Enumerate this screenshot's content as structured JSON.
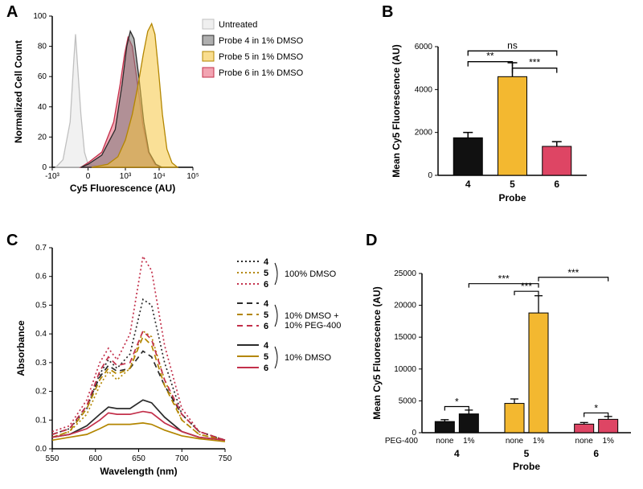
{
  "colors": {
    "untreated": {
      "fill": "#e5e5e5",
      "stroke": "#c0c0c0"
    },
    "probe4": {
      "fill": "#7a7a7a",
      "stroke": "#2b2b2b",
      "bar": "#111111"
    },
    "probe5": {
      "fill": "#f5c642",
      "stroke": "#b38600",
      "bar": "#f3b830"
    },
    "probe6": {
      "fill": "#e9677e",
      "stroke": "#c3304b",
      "bar": "#de4564"
    },
    "axis": "#000000",
    "bg": "#ffffff"
  },
  "panelA": {
    "label": "A",
    "type": "histogram",
    "xlabel": "Cy5 Fluorescence  (AU)",
    "ylabel": "Normalized Cell Count",
    "xticks": [
      "-10³",
      "0",
      "10³",
      "10⁴",
      "10⁵"
    ],
    "xlim": [
      -1000,
      100000
    ],
    "yticks": [
      0,
      20,
      40,
      60,
      80,
      100
    ],
    "ylim": [
      0,
      100
    ],
    "legend": [
      {
        "key": "untreated",
        "text": "Untreated"
      },
      {
        "key": "probe4",
        "text": "Probe 4 in 1% DMSO"
      },
      {
        "key": "probe5",
        "text": "Probe 5 in 1% DMSO"
      },
      {
        "key": "probe6",
        "text": "Probe 6 in 1% DMSO"
      }
    ],
    "curves": {
      "untreated": [
        [
          -900,
          0
        ],
        [
          -700,
          5
        ],
        [
          -500,
          30
        ],
        [
          -400,
          70
        ],
        [
          -350,
          88
        ],
        [
          -300,
          70
        ],
        [
          -200,
          35
        ],
        [
          -100,
          10
        ],
        [
          0,
          2
        ],
        [
          200,
          0
        ]
      ],
      "probe4": [
        [
          -200,
          0
        ],
        [
          0,
          2
        ],
        [
          200,
          8
        ],
        [
          500,
          25
        ],
        [
          800,
          55
        ],
        [
          1100,
          80
        ],
        [
          1400,
          90
        ],
        [
          1800,
          85
        ],
        [
          2500,
          60
        ],
        [
          3500,
          30
        ],
        [
          5000,
          10
        ],
        [
          8000,
          2
        ],
        [
          12000,
          0
        ]
      ],
      "probe6": [
        [
          -200,
          0
        ],
        [
          0,
          3
        ],
        [
          200,
          10
        ],
        [
          450,
          30
        ],
        [
          700,
          55
        ],
        [
          950,
          75
        ],
        [
          1200,
          86
        ],
        [
          1600,
          80
        ],
        [
          2300,
          55
        ],
        [
          3300,
          28
        ],
        [
          4800,
          10
        ],
        [
          7500,
          2
        ],
        [
          11000,
          0
        ]
      ],
      "probe5": [
        [
          100,
          0
        ],
        [
          300,
          2
        ],
        [
          600,
          7
        ],
        [
          1000,
          18
        ],
        [
          1600,
          35
        ],
        [
          2400,
          55
        ],
        [
          3400,
          75
        ],
        [
          4600,
          90
        ],
        [
          6000,
          95
        ],
        [
          7500,
          88
        ],
        [
          9500,
          65
        ],
        [
          12500,
          35
        ],
        [
          17000,
          12
        ],
        [
          24000,
          3
        ],
        [
          35000,
          0
        ]
      ]
    }
  },
  "panelB": {
    "label": "B",
    "type": "bar",
    "ylabel": "Mean Cy5 Fluorescence (AU)",
    "xlabel": "Probe",
    "ylim": [
      0,
      6000
    ],
    "yticks": [
      0,
      2000,
      4000,
      6000
    ],
    "categories": [
      "4",
      "5",
      "6"
    ],
    "values": [
      1750,
      4600,
      1350
    ],
    "errors": [
      250,
      650,
      220
    ],
    "colors": [
      "probe4",
      "probe5",
      "probe6"
    ],
    "sig": [
      {
        "from": 0,
        "to": 1,
        "y": 5300,
        "label": "**"
      },
      {
        "from": 1,
        "to": 2,
        "y": 5000,
        "label": "***"
      },
      {
        "from": 0,
        "to": 2,
        "y": 5800,
        "label": "ns"
      }
    ]
  },
  "panelC": {
    "label": "C",
    "type": "line",
    "xlabel": "Wavelength (nm)",
    "ylabel": "Absorbance",
    "xlim": [
      550,
      750
    ],
    "xticks": [
      550,
      600,
      650,
      700,
      750
    ],
    "ylim": [
      0,
      0.7
    ],
    "yticks": [
      0.0,
      0.1,
      0.2,
      0.3,
      0.4,
      0.5,
      0.6,
      0.7
    ],
    "legend_groups": [
      {
        "dash": "dot",
        "cond": "100% DMSO",
        "items": [
          "4",
          "5",
          "6"
        ]
      },
      {
        "dash": "dash",
        "cond": "10% DMSO +\n10% PEG-400",
        "items": [
          "4",
          "5",
          "6"
        ]
      },
      {
        "dash": "solid",
        "cond": "10% DMSO",
        "items": [
          "4",
          "5",
          "6"
        ]
      }
    ],
    "series": [
      {
        "probe": "4",
        "dash": "dot",
        "pts": [
          [
            550,
            0.05
          ],
          [
            570,
            0.07
          ],
          [
            590,
            0.14
          ],
          [
            605,
            0.26
          ],
          [
            615,
            0.31
          ],
          [
            625,
            0.28
          ],
          [
            640,
            0.33
          ],
          [
            655,
            0.52
          ],
          [
            665,
            0.5
          ],
          [
            680,
            0.3
          ],
          [
            700,
            0.12
          ],
          [
            720,
            0.06
          ],
          [
            750,
            0.03
          ]
        ]
      },
      {
        "probe": "5",
        "dash": "dot",
        "pts": [
          [
            550,
            0.04
          ],
          [
            570,
            0.06
          ],
          [
            590,
            0.12
          ],
          [
            605,
            0.22
          ],
          [
            615,
            0.27
          ],
          [
            625,
            0.24
          ],
          [
            640,
            0.28
          ],
          [
            655,
            0.41
          ],
          [
            665,
            0.39
          ],
          [
            680,
            0.24
          ],
          [
            700,
            0.1
          ],
          [
            720,
            0.05
          ],
          [
            750,
            0.03
          ]
        ]
      },
      {
        "probe": "6",
        "dash": "dot",
        "pts": [
          [
            550,
            0.06
          ],
          [
            570,
            0.08
          ],
          [
            590,
            0.17
          ],
          [
            605,
            0.3
          ],
          [
            615,
            0.35
          ],
          [
            625,
            0.31
          ],
          [
            640,
            0.4
          ],
          [
            655,
            0.67
          ],
          [
            665,
            0.62
          ],
          [
            680,
            0.36
          ],
          [
            700,
            0.14
          ],
          [
            720,
            0.06
          ],
          [
            750,
            0.03
          ]
        ]
      },
      {
        "probe": "4",
        "dash": "dash",
        "pts": [
          [
            550,
            0.05
          ],
          [
            570,
            0.07
          ],
          [
            590,
            0.15
          ],
          [
            605,
            0.25
          ],
          [
            615,
            0.29
          ],
          [
            625,
            0.27
          ],
          [
            640,
            0.28
          ],
          [
            655,
            0.34
          ],
          [
            665,
            0.32
          ],
          [
            680,
            0.22
          ],
          [
            700,
            0.12
          ],
          [
            720,
            0.06
          ],
          [
            750,
            0.03
          ]
        ]
      },
      {
        "probe": "5",
        "dash": "dash",
        "pts": [
          [
            550,
            0.04
          ],
          [
            570,
            0.06
          ],
          [
            590,
            0.14
          ],
          [
            605,
            0.24
          ],
          [
            615,
            0.28
          ],
          [
            625,
            0.26
          ],
          [
            640,
            0.28
          ],
          [
            655,
            0.39
          ],
          [
            665,
            0.36
          ],
          [
            680,
            0.22
          ],
          [
            700,
            0.1
          ],
          [
            720,
            0.05
          ],
          [
            750,
            0.03
          ]
        ]
      },
      {
        "probe": "6",
        "dash": "dash",
        "pts": [
          [
            550,
            0.05
          ],
          [
            570,
            0.07
          ],
          [
            590,
            0.15
          ],
          [
            605,
            0.27
          ],
          [
            615,
            0.32
          ],
          [
            625,
            0.29
          ],
          [
            640,
            0.3
          ],
          [
            655,
            0.41
          ],
          [
            665,
            0.38
          ],
          [
            680,
            0.24
          ],
          [
            700,
            0.12
          ],
          [
            720,
            0.06
          ],
          [
            750,
            0.03
          ]
        ]
      },
      {
        "probe": "4",
        "dash": "solid",
        "pts": [
          [
            550,
            0.04
          ],
          [
            570,
            0.05
          ],
          [
            590,
            0.08
          ],
          [
            605,
            0.12
          ],
          [
            615,
            0.145
          ],
          [
            625,
            0.14
          ],
          [
            640,
            0.14
          ],
          [
            655,
            0.17
          ],
          [
            665,
            0.16
          ],
          [
            680,
            0.11
          ],
          [
            700,
            0.06
          ],
          [
            720,
            0.04
          ],
          [
            750,
            0.03
          ]
        ]
      },
      {
        "probe": "5",
        "dash": "solid",
        "pts": [
          [
            550,
            0.03
          ],
          [
            570,
            0.04
          ],
          [
            590,
            0.05
          ],
          [
            605,
            0.07
          ],
          [
            615,
            0.085
          ],
          [
            625,
            0.085
          ],
          [
            640,
            0.085
          ],
          [
            655,
            0.09
          ],
          [
            665,
            0.085
          ],
          [
            680,
            0.065
          ],
          [
            700,
            0.045
          ],
          [
            720,
            0.035
          ],
          [
            750,
            0.025
          ]
        ]
      },
      {
        "probe": "6",
        "dash": "solid",
        "pts": [
          [
            550,
            0.04
          ],
          [
            570,
            0.05
          ],
          [
            590,
            0.07
          ],
          [
            605,
            0.1
          ],
          [
            615,
            0.125
          ],
          [
            625,
            0.12
          ],
          [
            640,
            0.12
          ],
          [
            655,
            0.13
          ],
          [
            665,
            0.125
          ],
          [
            680,
            0.09
          ],
          [
            700,
            0.06
          ],
          [
            720,
            0.04
          ],
          [
            750,
            0.03
          ]
        ]
      }
    ],
    "probe_color": {
      "4": "probe4",
      "5": "probe5",
      "6": "probe6"
    },
    "dash_map": {
      "dot": "2 3",
      "dash": "7 5",
      "solid": ""
    }
  },
  "panelD": {
    "label": "D",
    "type": "bar",
    "ylabel": "Mean Cy5 Fluorescence (AU)",
    "xlabel": "Probe",
    "peg_rowlabel": "PEG-400",
    "ylim": [
      0,
      25000
    ],
    "yticks": [
      0,
      5000,
      10000,
      15000,
      20000,
      25000
    ],
    "groups": [
      {
        "probe": "4",
        "color": "probe4",
        "bars": [
          {
            "peg": "none",
            "v": 1750,
            "e": 300
          },
          {
            "peg": "1%",
            "v": 2950,
            "e": 600
          }
        ]
      },
      {
        "probe": "5",
        "color": "probe5",
        "bars": [
          {
            "peg": "none",
            "v": 4600,
            "e": 700
          },
          {
            "peg": "1%",
            "v": 18800,
            "e": 2700
          }
        ]
      },
      {
        "probe": "6",
        "color": "probe6",
        "bars": [
          {
            "peg": "none",
            "v": 1350,
            "e": 250
          },
          {
            "peg": "1%",
            "v": 2100,
            "e": 450
          }
        ]
      }
    ],
    "sig": [
      {
        "type": "within",
        "group": 0,
        "y": 4100,
        "label": "*"
      },
      {
        "type": "within",
        "group": 1,
        "y": 22200,
        "label": "***"
      },
      {
        "type": "within",
        "group": 2,
        "y": 3100,
        "label": "*"
      },
      {
        "type": "across",
        "from": [
          0,
          1
        ],
        "to": [
          1,
          1
        ],
        "y": 23400,
        "label": "***"
      },
      {
        "type": "across",
        "from": [
          1,
          1
        ],
        "to": [
          2,
          1
        ],
        "y": 24400,
        "label": "***"
      }
    ]
  }
}
